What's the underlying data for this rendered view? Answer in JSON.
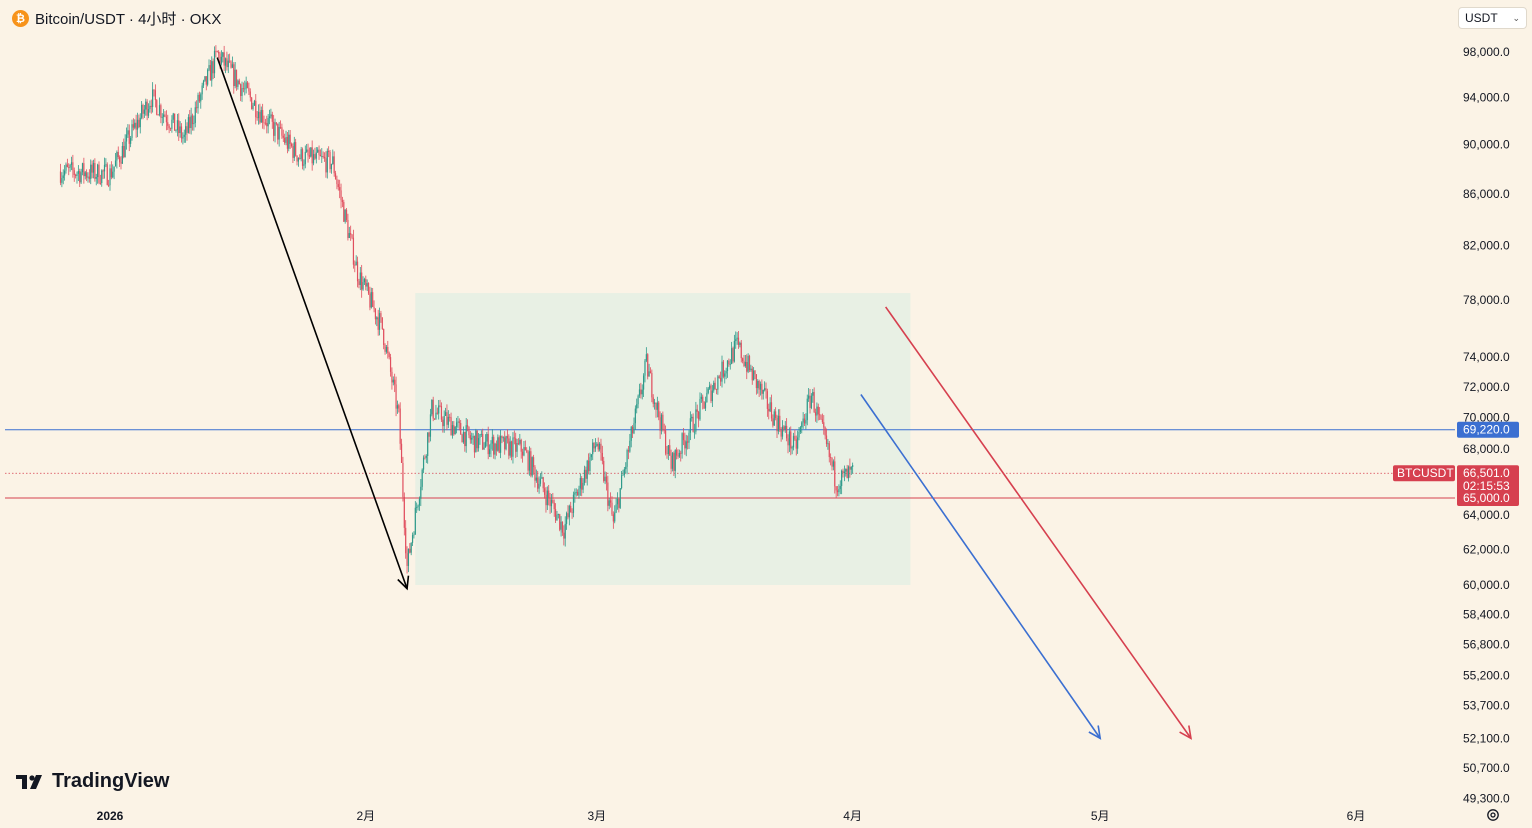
{
  "header": {
    "coin_symbol": "₿",
    "title": "Bitcoin/USDT · 4小时 · OKX"
  },
  "currency_select": {
    "value": "USDT"
  },
  "brand": {
    "name": "TradingView"
  },
  "colors": {
    "background": "#fbf3e6",
    "up": "#2e9a8a",
    "down": "#e04e5e",
    "blue_line": "#3b6fd1",
    "red_line": "#d6404f",
    "range_box": "#e6efe3",
    "black_arrow": "#000000"
  },
  "chart_data": {
    "type": "candlestick",
    "symbol": "BTCUSDT",
    "interval": "4小时",
    "exchange": "OKX",
    "y_axis": {
      "scale": "log",
      "ylim": [
        49300,
        98000
      ],
      "ticks": [
        "98,000.0",
        "94,000.0",
        "90,000.0",
        "86,000.0",
        "82,000.0",
        "78,000.0",
        "74,000.0",
        "72,000.0",
        "70,000.0",
        "68,000.0",
        "64,000.0",
        "62,000.0",
        "60,000.0",
        "58,400.0",
        "56,800.0",
        "55,200.0",
        "53,700.0",
        "52,100.0",
        "50,700.0",
        "49,300.0"
      ]
    },
    "x_axis": {
      "ticks": [
        "2026",
        "2月",
        "3月",
        "4月",
        "5月",
        "6月"
      ]
    },
    "price_path": [
      {
        "date": "2025-12-26",
        "close": 87800
      },
      {
        "date": "2026-01-01",
        "close": 87600
      },
      {
        "date": "2026-01-06",
        "close": 94000
      },
      {
        "date": "2026-01-10",
        "close": 90500
      },
      {
        "date": "2026-01-14",
        "close": 97800
      },
      {
        "date": "2026-01-20",
        "close": 92000
      },
      {
        "date": "2026-01-24",
        "close": 89000
      },
      {
        "date": "2026-01-28",
        "close": 88500
      },
      {
        "date": "2026-01-31",
        "close": 80000
      },
      {
        "date": "2026-02-03",
        "close": 76000
      },
      {
        "date": "2026-02-05",
        "close": 70000
      },
      {
        "date": "2026-02-06",
        "close": 61000
      },
      {
        "date": "2026-02-09",
        "close": 70500
      },
      {
        "date": "2026-02-14",
        "close": 68500
      },
      {
        "date": "2026-02-20",
        "close": 68000
      },
      {
        "date": "2026-02-25",
        "close": 63200
      },
      {
        "date": "2026-03-01",
        "close": 68500
      },
      {
        "date": "2026-03-03",
        "close": 63500
      },
      {
        "date": "2026-03-07",
        "close": 73500
      },
      {
        "date": "2026-03-10",
        "close": 67000
      },
      {
        "date": "2026-03-14",
        "close": 71000
      },
      {
        "date": "2026-03-18",
        "close": 74800
      },
      {
        "date": "2026-03-22",
        "close": 70500
      },
      {
        "date": "2026-03-25",
        "close": 68000
      },
      {
        "date": "2026-03-27",
        "close": 71500
      },
      {
        "date": "2026-03-30",
        "close": 66000
      },
      {
        "date": "2026-04-01",
        "close": 66501
      }
    ],
    "horizontal_lines": [
      {
        "price": 69220,
        "label": "69,220.0",
        "color": "#3b6fd1"
      },
      {
        "price": 65000,
        "label": "65,000.0",
        "color": "#d6404f"
      }
    ],
    "last_price": {
      "symbol_tag": "BTCUSDT",
      "price_label": "66,501.0",
      "countdown": "02:15:53",
      "price": 66501
    },
    "range_box": {
      "from": "2026-02-07",
      "to": "2026-04-08",
      "high": 78500,
      "low": 60000
    },
    "arrows": [
      {
        "color": "#000000",
        "from": {
          "date": "2026-01-14",
          "price": 97500
        },
        "to": {
          "date": "2026-02-06",
          "price": 59800
        }
      },
      {
        "color": "#3b6fd1",
        "from": {
          "date": "2026-04-02",
          "price": 71500
        },
        "to": {
          "date": "2026-05-01",
          "price": 52100
        }
      },
      {
        "color": "#d6404f",
        "from": {
          "date": "2026-04-05",
          "price": 77500
        },
        "to": {
          "date": "2026-05-12",
          "price": 52100
        }
      }
    ]
  }
}
